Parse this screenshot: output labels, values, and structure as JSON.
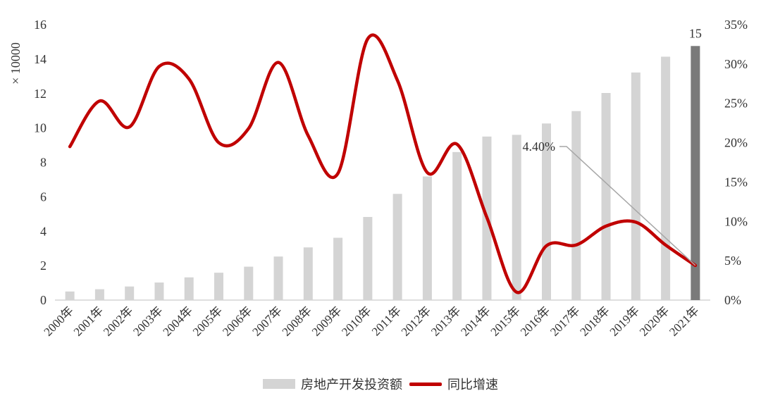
{
  "chart_data": {
    "type": "bar",
    "categories": [
      "2000年",
      "2001年",
      "2002年",
      "2003年",
      "2004年",
      "2005年",
      "2006年",
      "2007年",
      "2008年",
      "2009年",
      "2010年",
      "2011年",
      "2012年",
      "2013年",
      "2014年",
      "2015年",
      "2016年",
      "2017年",
      "2018年",
      "2019年",
      "2020年",
      "2021年"
    ],
    "series": [
      {
        "name": "房地产开发投资额",
        "type": "bar",
        "axis": "left",
        "values": [
          0.5,
          0.63,
          0.79,
          1.02,
          1.32,
          1.59,
          1.94,
          2.53,
          3.06,
          3.62,
          4.83,
          6.17,
          7.18,
          8.6,
          9.5,
          9.6,
          10.26,
          10.98,
          12.03,
          13.22,
          14.14,
          14.76
        ],
        "color": "#d4d4d4",
        "highlight_index": 21,
        "highlight_color": "#7a7a7a"
      },
      {
        "name": "同比增速",
        "type": "line",
        "axis": "right",
        "values": [
          19.5,
          25.3,
          22.0,
          29.7,
          28.1,
          20.0,
          21.8,
          30.2,
          20.9,
          16.1,
          33.2,
          27.9,
          16.2,
          19.8,
          10.5,
          1.0,
          6.9,
          7.0,
          9.4,
          9.9,
          7.0,
          4.4
        ],
        "color": "#c00000"
      }
    ],
    "y_left": {
      "min": 0,
      "max": 16,
      "ticks": [
        0,
        2,
        4,
        6,
        8,
        10,
        12,
        14,
        16
      ],
      "label": "× 10000"
    },
    "y_right": {
      "min": 0,
      "max": 35,
      "ticks": [
        "0%",
        "5%",
        "10%",
        "15%",
        "20%",
        "25%",
        "30%",
        "35%"
      ]
    },
    "data_labels": [
      {
        "series": 0,
        "index": 21,
        "text": "15"
      }
    ],
    "annotations": [
      {
        "series": 1,
        "index": 21,
        "text": "4.40%"
      }
    ],
    "legend": {
      "position": "bottom"
    },
    "grid": false
  }
}
